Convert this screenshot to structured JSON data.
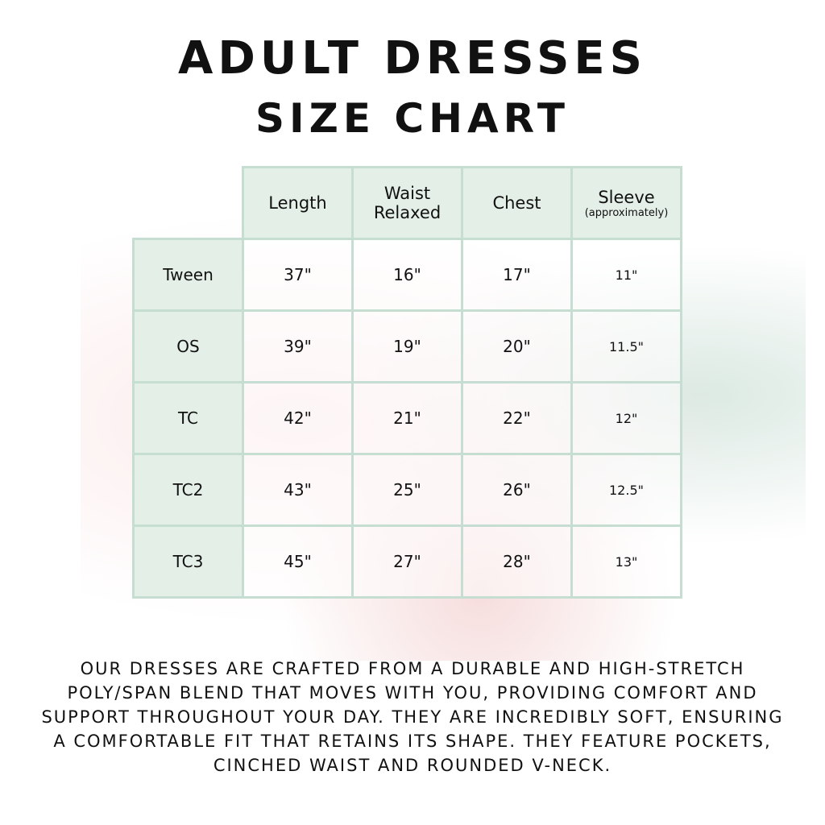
{
  "title": {
    "line1": "ADULT DRESSES",
    "line2": "SIZE CHART"
  },
  "table": {
    "headers": [
      {
        "label": "Length"
      },
      {
        "label": "Waist",
        "sub": "Relaxed"
      },
      {
        "label": "Chest"
      },
      {
        "label": "Sleeve",
        "sub": "(approximately)"
      }
    ],
    "rows": [
      {
        "size": "Tween",
        "values": [
          "37\"",
          "16\"",
          "17\"",
          "11\""
        ]
      },
      {
        "size": "OS",
        "values": [
          "39\"",
          "19\"",
          "20\"",
          "11.5\""
        ]
      },
      {
        "size": "TC",
        "values": [
          "42\"",
          "21\"",
          "22\"",
          "12\""
        ]
      },
      {
        "size": "TC2",
        "values": [
          "43\"",
          "25\"",
          "26\"",
          "12.5\""
        ]
      },
      {
        "size": "TC3",
        "values": [
          "45\"",
          "27\"",
          "28\"",
          "13\""
        ]
      }
    ]
  },
  "description": "Our dresses are crafted from a durable and high-stretch poly/span blend that moves with you, providing comfort and support throughout your day. They are incredibly soft, ensuring a comfortable fit that retains its shape. They feature pockets, cinched waist and rounded V-neck.",
  "colors": {
    "header_bg": "#e4efe8",
    "border": "#c6ddd1"
  }
}
